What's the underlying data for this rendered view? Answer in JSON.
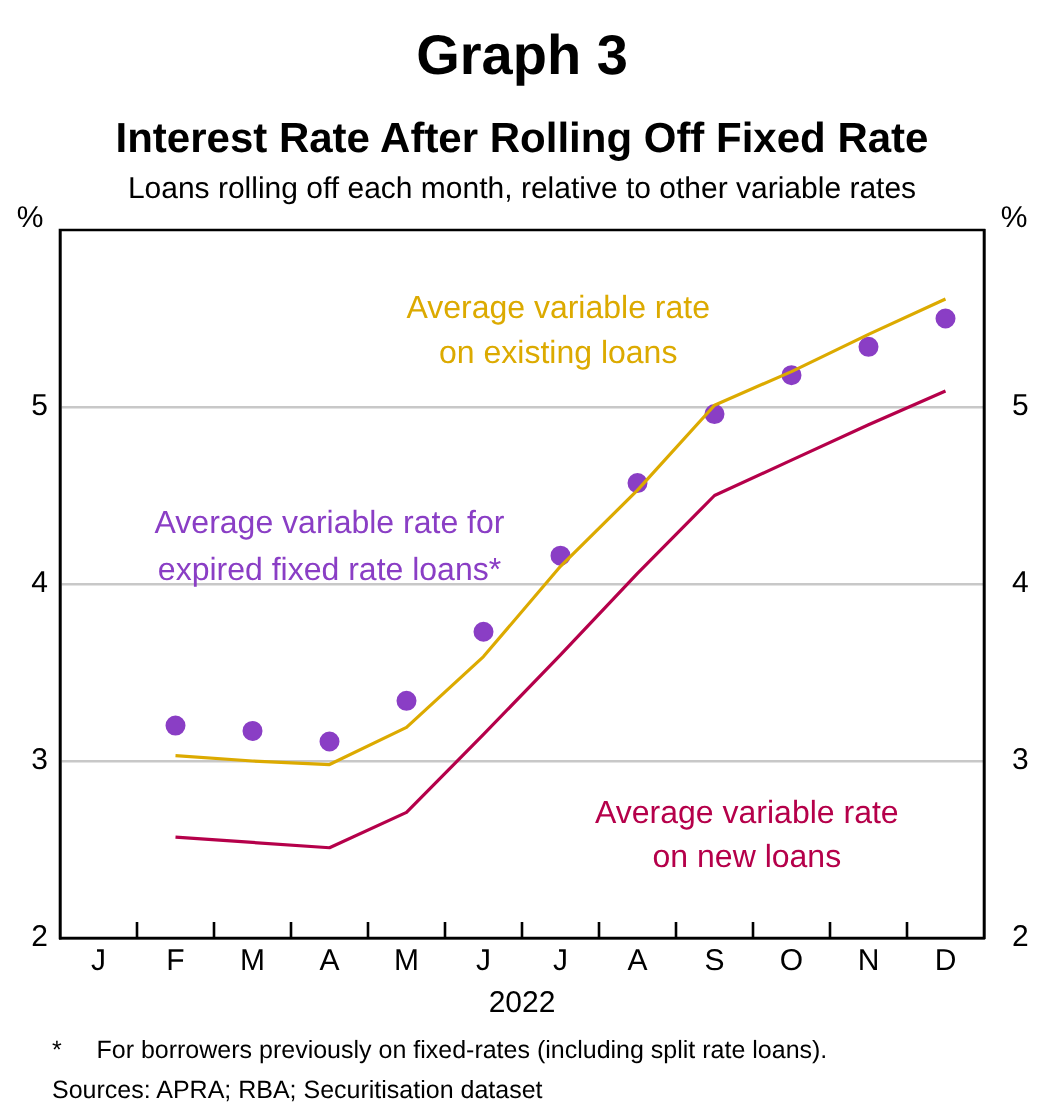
{
  "chart_data": {
    "type": "line",
    "title": "Interest Rate After Rolling Off Fixed Rate",
    "subtitle": "Loans rolling off each month, relative to other variable rates",
    "xlabel": "2022",
    "ylabel": "%",
    "y2label": "%",
    "annotations": [
      "Graph 3",
      "*     For borrowers previously on fixed-rates (including split rate loans).",
      "Sources: APRA; RBA; Securitisation dataset"
    ],
    "categories": [
      "J",
      "F",
      "M",
      "A",
      "M",
      "J",
      "J",
      "A",
      "S",
      "O",
      "N",
      "D"
    ],
    "series": [
      {
        "name": "Average variable rate on existing loans",
        "color": "#dcaa00",
        "values": [
          null,
          3.03,
          3.0,
          2.98,
          3.19,
          3.59,
          4.1,
          4.53,
          5.01,
          5.2,
          5.41,
          5.61
        ]
      },
      {
        "name": "Average variable rate on new loans",
        "color": "#b5004a",
        "values": [
          null,
          2.57,
          2.54,
          2.51,
          2.71,
          3.15,
          3.6,
          4.06,
          4.5,
          4.7,
          4.9,
          5.09
        ]
      },
      {
        "name": "Average variable rate for expired fixed rate loans*",
        "type": "scatter",
        "marker": "circle",
        "color": "#8a3ec5",
        "values": [
          null,
          3.2,
          3.17,
          3.11,
          3.34,
          3.73,
          4.16,
          4.57,
          4.96,
          5.18,
          5.34,
          5.5
        ]
      }
    ],
    "ylim": [
      2,
      6
    ],
    "yticks": [
      2,
      3,
      4,
      5
    ],
    "y2lim": [
      2,
      6
    ],
    "y2ticks": [
      2,
      3,
      4,
      5
    ],
    "grid": "y",
    "legend": false,
    "marker": "none",
    "line_style": "solid"
  }
}
